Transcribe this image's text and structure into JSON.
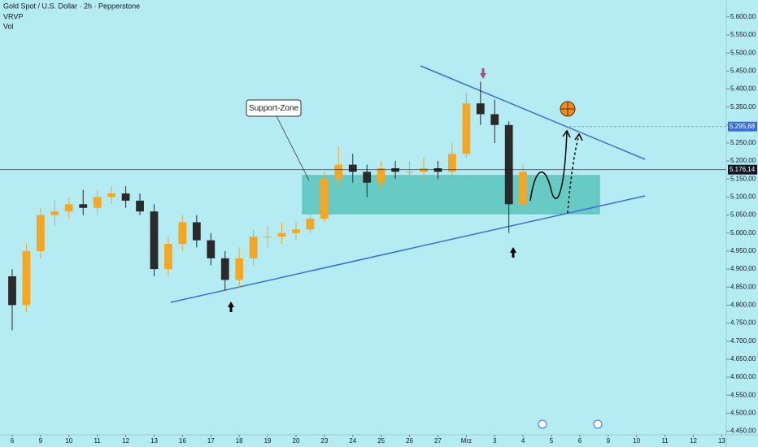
{
  "chart_data": {
    "type": "candlestick",
    "title": "Gold Spot / U.S. Dollar · 2h · Pepperstone",
    "indicators": [
      "VRVP",
      "Vol"
    ],
    "annotation": "Support-Zone",
    "candles": {
      "x": [
        0,
        0.5,
        1,
        1.5,
        2,
        2.5,
        3,
        3.5,
        4,
        4.5,
        5,
        5.5,
        6,
        6.5,
        7,
        7.5,
        8,
        8.5,
        9,
        9.5,
        10,
        10.5,
        11,
        11.5,
        12,
        12.5,
        13,
        13.5,
        14,
        14.5,
        15,
        15.5,
        16,
        16.5,
        17,
        17.5,
        18
      ],
      "open": [
        4880,
        4800,
        4950,
        5050,
        5060,
        5080,
        5070,
        5100,
        5110,
        5090,
        5060,
        4900,
        4970,
        5030,
        4980,
        4930,
        4870,
        4930,
        4990,
        4990,
        5000,
        5010,
        5040,
        5150,
        5190,
        5170,
        5140,
        5180,
        5170,
        5170,
        5180,
        5170,
        5220,
        5360,
        5330,
        5300,
        5080
      ],
      "high": [
        4900,
        4970,
        5070,
        5090,
        5100,
        5120,
        5120,
        5130,
        5130,
        5110,
        5080,
        4990,
        5050,
        5050,
        5000,
        4950,
        4960,
        5010,
        5020,
        5030,
        5030,
        5060,
        5170,
        5240,
        5220,
        5190,
        5200,
        5200,
        5200,
        5210,
        5200,
        5250,
        5390,
        5420,
        5370,
        5310,
        5190
      ],
      "low": [
        4730,
        4780,
        4930,
        5020,
        5040,
        5050,
        5050,
        5080,
        5070,
        5050,
        4880,
        4880,
        4950,
        4960,
        4910,
        4840,
        4850,
        4910,
        4960,
        4970,
        4980,
        5000,
        5030,
        5130,
        5140,
        5100,
        5120,
        5150,
        5150,
        5150,
        5150,
        5160,
        5210,
        5300,
        5250,
        5000,
        5060
      ],
      "close": [
        4800,
        4950,
        5050,
        5060,
        5080,
        5070,
        5100,
        5110,
        5090,
        5060,
        4900,
        4970,
        5030,
        4980,
        4930,
        4870,
        4930,
        4990,
        4990,
        5000,
        5010,
        5040,
        5150,
        5190,
        5170,
        5140,
        5180,
        5170,
        5170,
        5180,
        5170,
        5220,
        5360,
        5330,
        5300,
        5080,
        5170
      ]
    },
    "up_color": "#f5a623",
    "down_color": "#2a2a2a",
    "price_lines": [
      {
        "value": 5295.68,
        "label": "5.295,68",
        "color": "#3d6fd1"
      },
      {
        "value": 5176.14,
        "label": "5.176,14",
        "color": "#131722"
      }
    ],
    "xlim": [
      -0.43,
      25.16
    ],
    "xticks": [
      {
        "value": 0,
        "label": "6"
      },
      {
        "value": 1,
        "label": "9"
      },
      {
        "value": 2,
        "label": "10"
      },
      {
        "value": 3,
        "label": "11"
      },
      {
        "value": 4,
        "label": "12"
      },
      {
        "value": 5,
        "label": "13"
      },
      {
        "value": 6,
        "label": "16"
      },
      {
        "value": 7,
        "label": "17"
      },
      {
        "value": 8,
        "label": "18"
      },
      {
        "value": 9,
        "label": "19"
      },
      {
        "value": 10,
        "label": "20"
      },
      {
        "value": 11,
        "label": "23"
      },
      {
        "value": 12,
        "label": "24"
      },
      {
        "value": 13,
        "label": "25"
      },
      {
        "value": 14,
        "label": "26"
      },
      {
        "value": 15,
        "label": "27"
      },
      {
        "value": 16,
        "label": "Mrz"
      },
      {
        "value": 17,
        "label": "3"
      },
      {
        "value": 18,
        "label": "4"
      },
      {
        "value": 19,
        "label": "5"
      },
      {
        "value": 20,
        "label": "6"
      },
      {
        "value": 21,
        "label": "9"
      },
      {
        "value": 22,
        "label": "10"
      },
      {
        "value": 23,
        "label": "11"
      },
      {
        "value": 24,
        "label": "12"
      },
      {
        "value": 25,
        "label": "13"
      }
    ],
    "ylim": [
      4440,
      5647
    ],
    "yticks": [
      {
        "value": 4450,
        "label": "4.450,00"
      },
      {
        "value": 4500,
        "label": "4.500,00"
      },
      {
        "value": 4550,
        "label": "4.550,00"
      },
      {
        "value": 4600,
        "label": "4.600,00"
      },
      {
        "value": 4650,
        "label": "4.650,00"
      },
      {
        "value": 4700,
        "label": "4.700,00"
      },
      {
        "value": 4750,
        "label": "4.750,00"
      },
      {
        "value": 4800,
        "label": "4.800,00"
      },
      {
        "value": 4850,
        "label": "4.850,00"
      },
      {
        "value": 4900,
        "label": "4.900,00"
      },
      {
        "value": 4950,
        "label": "4.950,00"
      },
      {
        "value": 5000,
        "label": "5.000,00"
      },
      {
        "value": 5050,
        "label": "5.050,00"
      },
      {
        "value": 5100,
        "label": "5.100,00"
      },
      {
        "value": 5150,
        "label": "5.150,00"
      },
      {
        "value": 5200,
        "label": "5.200,00"
      },
      {
        "value": 5250,
        "label": "5.250,00"
      },
      {
        "value": 5300,
        "label": "5.300,00"
      },
      {
        "value": 5350,
        "label": "5.350,00"
      },
      {
        "value": 5400,
        "label": "5.400,00"
      },
      {
        "value": 5450,
        "label": "5.450,00"
      },
      {
        "value": 5500,
        "label": "5.500,00"
      },
      {
        "value": 5550,
        "label": "5.550,00"
      },
      {
        "value": 5600,
        "label": "5.600,00"
      }
    ]
  }
}
